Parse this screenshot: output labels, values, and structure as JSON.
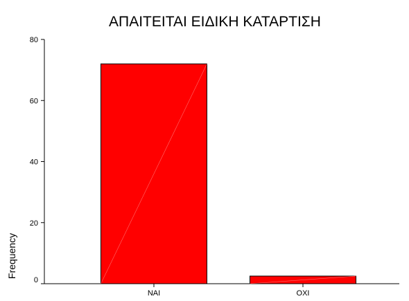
{
  "chart_data": {
    "type": "bar",
    "title": "ΑΠΑΙΤΕΙΤΑΙ ΕΙΔΙΚΗ ΚΑΤΑΡΤΙΣΗ",
    "xlabel": "",
    "ylabel": "Frequency",
    "categories": [
      "NAI",
      "OXI"
    ],
    "values": [
      72,
      2.5
    ],
    "ylim": [
      0,
      80
    ],
    "yticks": [
      "0",
      "20",
      "40",
      "60",
      "80"
    ],
    "grid": false,
    "legend": "none",
    "bar_color": "#ff0000",
    "bar_outline_color": "#000000"
  }
}
